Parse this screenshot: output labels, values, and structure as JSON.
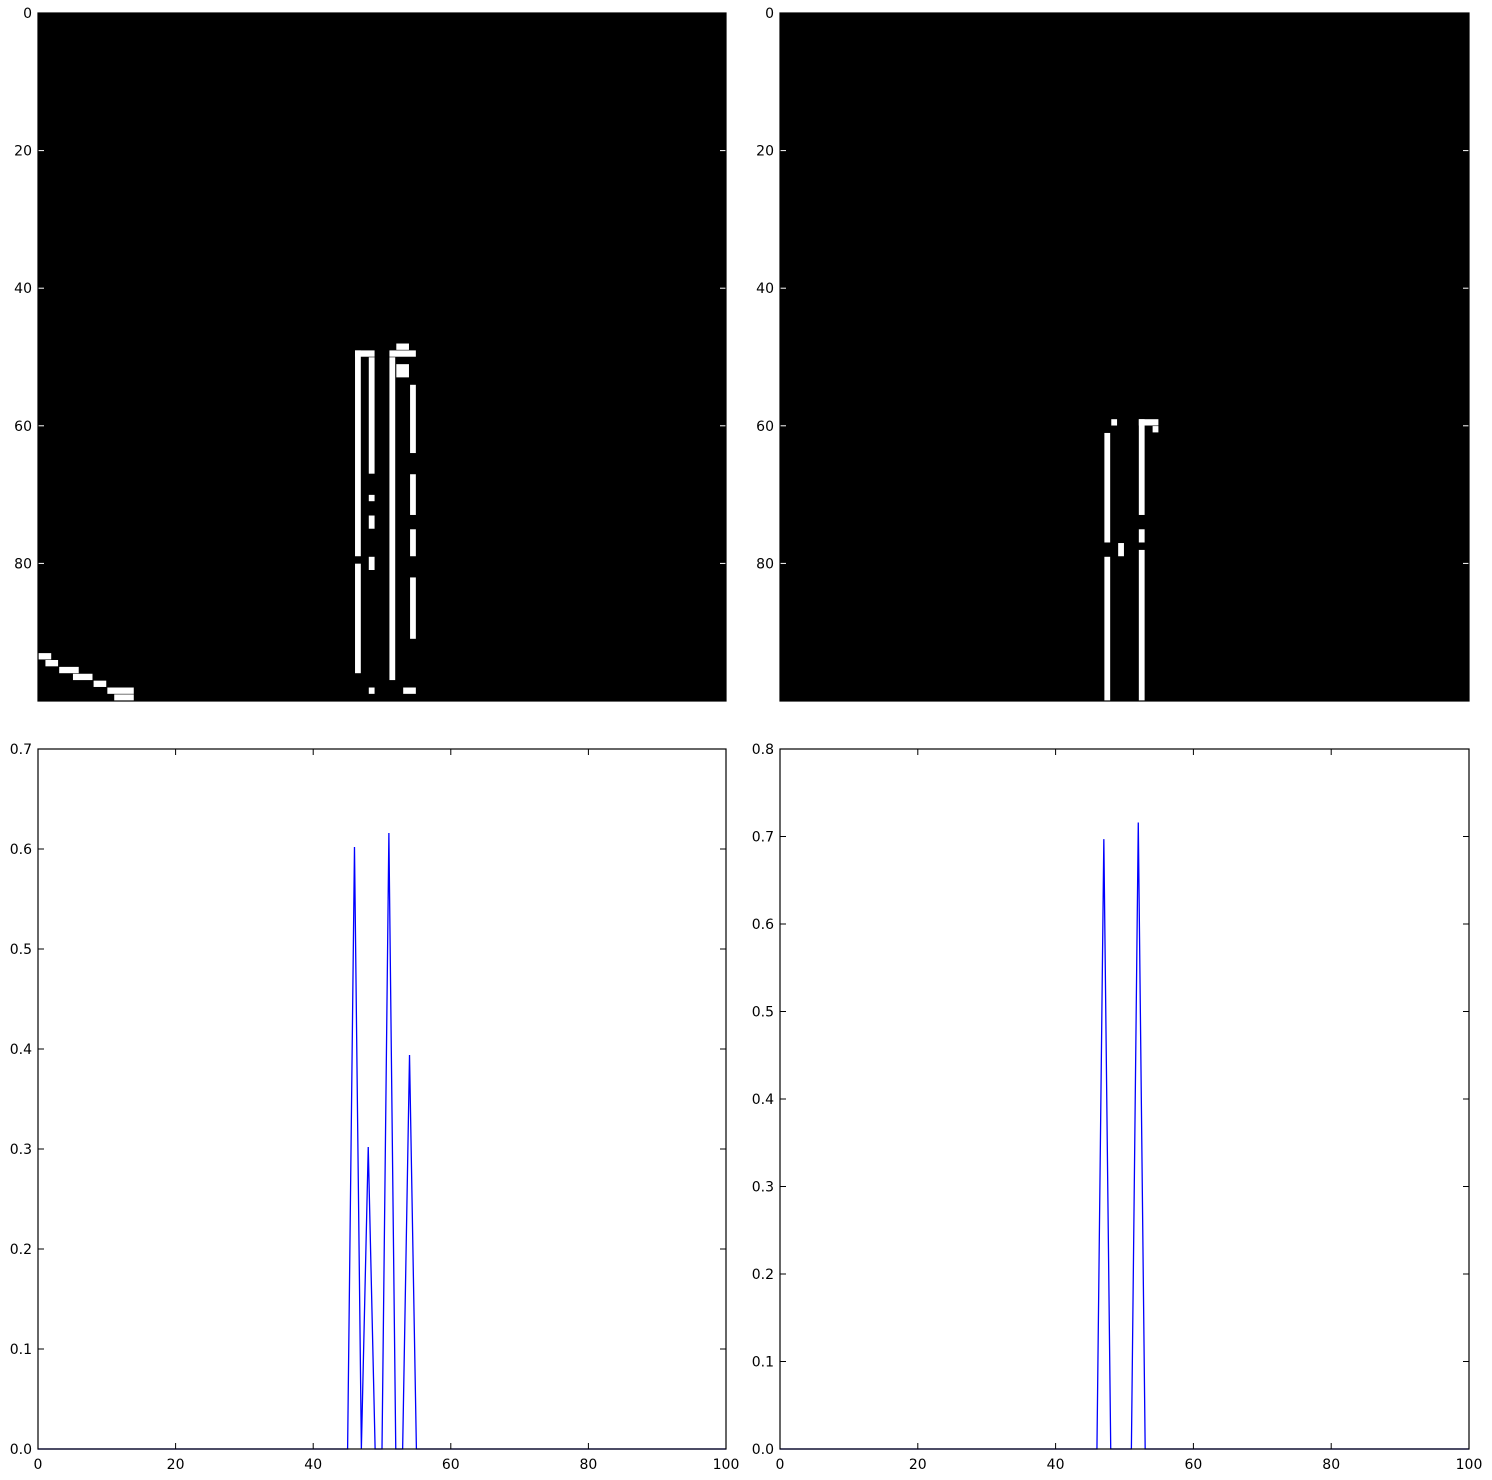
{
  "figure": {
    "background": "#ffffff",
    "line_color": "#0000ff",
    "image_bg": "#000000",
    "image_fg": "#ffffff"
  },
  "chart_data": [
    {
      "type": "heatmap",
      "image_shape": [
        100,
        100
      ],
      "xlim": [
        0,
        100
      ],
      "ylim": [
        100,
        0
      ],
      "xticks": [],
      "yticks": [
        "0",
        "20",
        "40",
        "60",
        "80"
      ],
      "yticks_values": [
        0,
        20,
        40,
        60,
        80
      ],
      "bright_segments": [
        {
          "cols": [
            46,
            46
          ],
          "rows": [
            49,
            78
          ]
        },
        {
          "cols": [
            46,
            46
          ],
          "rows": [
            80,
            95
          ]
        },
        {
          "cols": [
            46,
            48
          ],
          "rows": [
            49,
            49
          ]
        },
        {
          "cols": [
            48,
            48
          ],
          "rows": [
            50,
            66
          ]
        },
        {
          "cols": [
            48,
            48
          ],
          "rows": [
            70,
            70
          ]
        },
        {
          "cols": [
            48,
            48
          ],
          "rows": [
            73,
            74
          ]
        },
        {
          "cols": [
            48,
            48
          ],
          "rows": [
            79,
            80
          ]
        },
        {
          "cols": [
            48,
            48
          ],
          "rows": [
            98,
            98
          ]
        },
        {
          "cols": [
            51,
            51
          ],
          "rows": [
            50,
            96
          ]
        },
        {
          "cols": [
            51,
            54
          ],
          "rows": [
            49,
            49
          ]
        },
        {
          "cols": [
            52,
            53
          ],
          "rows": [
            48,
            48
          ]
        },
        {
          "cols": [
            52,
            53
          ],
          "rows": [
            51,
            52
          ]
        },
        {
          "cols": [
            54,
            54
          ],
          "rows": [
            54,
            63
          ]
        },
        {
          "cols": [
            54,
            54
          ],
          "rows": [
            67,
            72
          ]
        },
        {
          "cols": [
            54,
            54
          ],
          "rows": [
            75,
            78
          ]
        },
        {
          "cols": [
            54,
            54
          ],
          "rows": [
            82,
            90
          ]
        },
        {
          "cols": [
            53,
            54
          ],
          "rows": [
            98,
            98
          ]
        },
        {
          "cols": [
            0,
            1
          ],
          "rows": [
            93,
            93
          ]
        },
        {
          "cols": [
            1,
            2
          ],
          "rows": [
            94,
            94
          ]
        },
        {
          "cols": [
            3,
            5
          ],
          "rows": [
            95,
            95
          ]
        },
        {
          "cols": [
            5,
            7
          ],
          "rows": [
            96,
            96
          ]
        },
        {
          "cols": [
            8,
            9
          ],
          "rows": [
            97,
            97
          ]
        },
        {
          "cols": [
            10,
            13
          ],
          "rows": [
            98,
            98
          ]
        },
        {
          "cols": [
            11,
            13
          ],
          "rows": [
            99,
            99
          ]
        }
      ]
    },
    {
      "type": "heatmap",
      "image_shape": [
        100,
        100
      ],
      "xlim": [
        0,
        100
      ],
      "ylim": [
        100,
        0
      ],
      "xticks": [],
      "yticks": [
        "0",
        "20",
        "40",
        "60",
        "80"
      ],
      "yticks_values": [
        0,
        20,
        40,
        60,
        80
      ],
      "bright_segments": [
        {
          "cols": [
            47,
            47
          ],
          "rows": [
            61,
            76
          ]
        },
        {
          "cols": [
            48,
            48
          ],
          "rows": [
            59,
            59
          ]
        },
        {
          "cols": [
            49,
            49
          ],
          "rows": [
            77,
            78
          ]
        },
        {
          "cols": [
            47,
            47
          ],
          "rows": [
            79,
            99
          ]
        },
        {
          "cols": [
            52,
            52
          ],
          "rows": [
            59,
            72
          ]
        },
        {
          "cols": [
            52,
            54
          ],
          "rows": [
            59,
            59
          ]
        },
        {
          "cols": [
            54,
            54
          ],
          "rows": [
            60,
            60
          ]
        },
        {
          "cols": [
            52,
            52
          ],
          "rows": [
            75,
            76
          ]
        },
        {
          "cols": [
            52,
            52
          ],
          "rows": [
            78,
            99
          ]
        }
      ]
    },
    {
      "type": "line",
      "xlim": [
        0,
        100
      ],
      "ylim": [
        0,
        0.7
      ],
      "xticks": [
        "0",
        "20",
        "40",
        "60",
        "80",
        "100"
      ],
      "xticks_values": [
        0,
        20,
        40,
        60,
        80,
        100
      ],
      "yticks": [
        "0.0",
        "0.1",
        "0.2",
        "0.3",
        "0.4",
        "0.5",
        "0.6",
        "0.7"
      ],
      "yticks_values": [
        0,
        0.1,
        0.2,
        0.3,
        0.4,
        0.5,
        0.6,
        0.7
      ],
      "series": [
        {
          "x": [
            0,
            45,
            46,
            47,
            48,
            49,
            50,
            51,
            52,
            53,
            54,
            55,
            100
          ],
          "y": [
            0,
            0,
            0.602,
            0,
            0.302,
            0,
            0,
            0.616,
            0,
            0,
            0.394,
            0,
            0
          ]
        }
      ]
    },
    {
      "type": "line",
      "xlim": [
        0,
        100
      ],
      "ylim": [
        0,
        0.8
      ],
      "xticks": [
        "0",
        "20",
        "40",
        "60",
        "80",
        "100"
      ],
      "xticks_values": [
        0,
        20,
        40,
        60,
        80,
        100
      ],
      "yticks": [
        "0.0",
        "0.1",
        "0.2",
        "0.3",
        "0.4",
        "0.5",
        "0.6",
        "0.7",
        "0.8"
      ],
      "yticks_values": [
        0,
        0.1,
        0.2,
        0.3,
        0.4,
        0.5,
        0.6,
        0.7,
        0.8
      ],
      "series": [
        {
          "x": [
            0,
            46,
            47,
            48,
            51,
            52,
            53,
            100
          ],
          "y": [
            0,
            0,
            0.697,
            0,
            0,
            0.716,
            0,
            0
          ]
        }
      ]
    }
  ]
}
